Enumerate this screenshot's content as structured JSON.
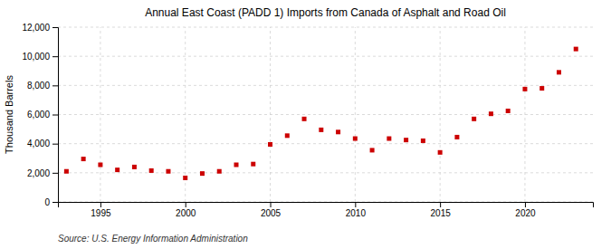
{
  "chart_data": {
    "type": "scatter",
    "title": "Annual East Coast (PADD 1) Imports from Canada of Asphalt and Road Oil",
    "y_label": "Thousand Barrels",
    "source": "Source: U.S. Energy Information Administration",
    "x": [
      1993,
      1994,
      1995,
      1996,
      1997,
      1998,
      1999,
      2000,
      2001,
      2002,
      2003,
      2004,
      2005,
      2006,
      2007,
      2008,
      2009,
      2010,
      2011,
      2012,
      2013,
      2014,
      2015,
      2016,
      2017,
      2018,
      2019,
      2020,
      2021,
      2022,
      2023
    ],
    "values": [
      2100,
      2950,
      2550,
      2200,
      2400,
      2150,
      2100,
      1650,
      1950,
      2100,
      2550,
      2600,
      3950,
      4550,
      5700,
      4950,
      4800,
      4350,
      3550,
      4350,
      4250,
      4200,
      3400,
      4450,
      5700,
      6050,
      6250,
      7750,
      7800,
      8900,
      10500
    ],
    "color": "#cc0000",
    "marker": "square",
    "xlim": [
      1992.5,
      2024
    ],
    "xticks": [
      1995,
      2000,
      2005,
      2010,
      2015,
      2020
    ],
    "ylim": [
      0,
      12000
    ],
    "yticks": [
      0,
      {
        "value": 2000,
        "label": "2,000"
      },
      {
        "value": 4000,
        "label": "4,000"
      },
      {
        "value": 6000,
        "label": "6,000"
      },
      {
        "value": 8000,
        "label": "8,000"
      },
      {
        "value": 10000,
        "label": "10,000"
      },
      {
        "value": 12000,
        "label": "12,000"
      }
    ],
    "grid": true
  }
}
